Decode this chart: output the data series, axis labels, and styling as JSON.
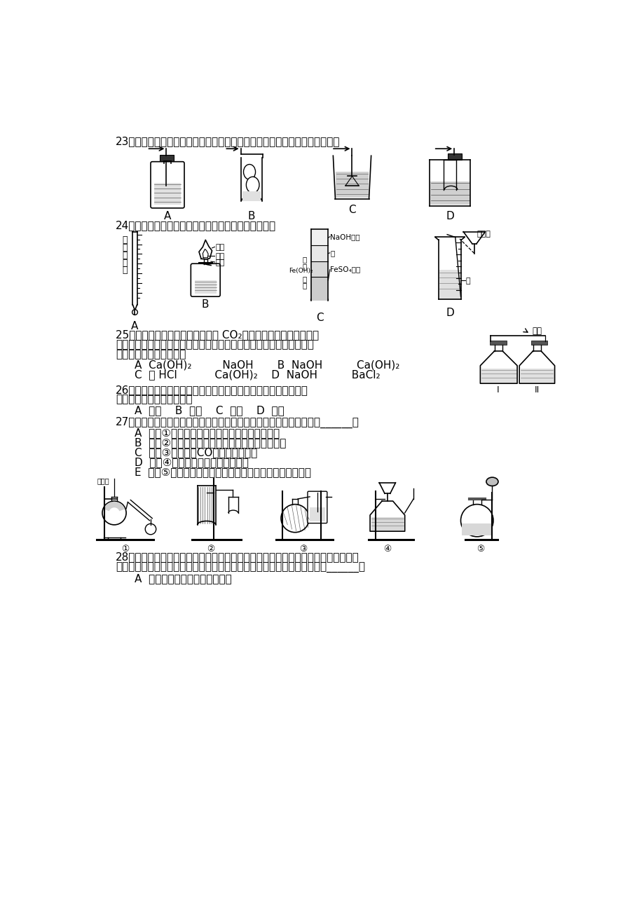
{
  "bg_color": "#ffffff",
  "q23": "23．以下各种尾气吸收装置中，适合于吸收易溶性气体，而且能防止倒吸的是",
  "q24": "24．下列对实验仪器名称的标注或实验操作，正确的是",
  "q25_1": "25．为验证人体呼出气体中含有的 CO₂不是来自空气，而是人体代",
  "q25_2": "谢作用产生的。某学校学生课外活动小组设计了如下图所示装置，你认",
  "q25_3": "为该装置应选用的试剂是",
  "q25_A": "A  Ca(OH)₂         NaOH       B  NaOH          Ca(OH)₂",
  "q25_C": "C  稀 HCl           Ca(OH)₂    D  NaOH          BaCl₂",
  "q26_1": "26．下列物质的溶液，不易被氧化、不易分解且能存放在具有磨口",
  "q26_2": "玻璃塞的无色试剂瓶中的是",
  "q26_opts": "A  烧碱    B  硝酸    C  醋酸    D  苯酚",
  "q27": "27．以下均为中学化学实验中的常见实验装置，下列有关说法正确的是______。",
  "q27_A": "A  装置①，用于分离沸点不同的两种液态有机物",
  "q27_B": "B  装置②，可用于检验碳酸钠与碳酸氢钠两种固体",
  "q27_C": "C  装置③，可用于CO还原氧化铁实验",
  "q27_D": "D  装置④，适用实验室制取少量乙块",
  "q27_E": "E  装置⑤，选择合适药品时，可用于制各少量氨气及氧气等",
  "q28_1": "28．玻璃棒是化学实验中常用的仪器，其作用是用于搅拌、过滤或转移液体时引流。",
  "q28_2": "下列有关实验过程中，肯定不需要使用玻璃棒进行操作的是（填字母代号）______。",
  "q28_A": "A  一定溶质质量分数溶液的配制"
}
